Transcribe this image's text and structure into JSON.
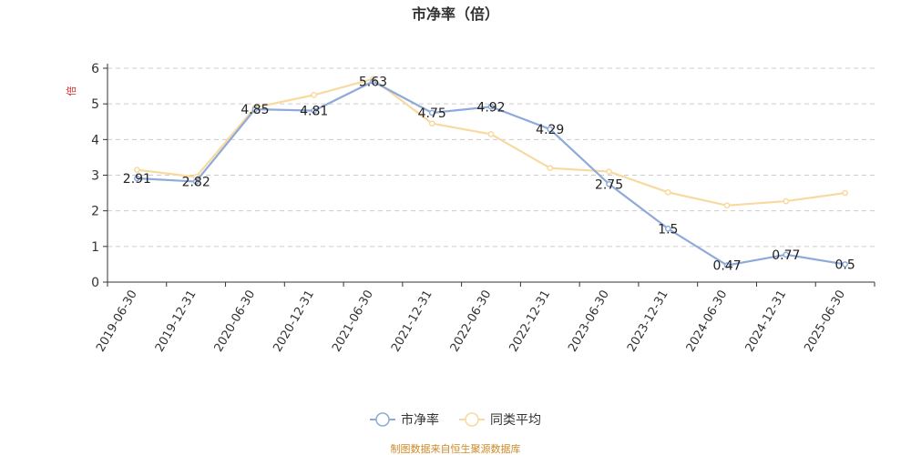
{
  "chart_data": {
    "type": "line",
    "title": "市净率（倍）",
    "ylabel": "倍",
    "xlabel": "",
    "ylim": [
      0,
      6
    ],
    "yticks": [
      "0",
      "1",
      "2",
      "3",
      "4",
      "5",
      "6"
    ],
    "grid": true,
    "legend_position": "bottom-center",
    "categories": [
      "2019-06-30",
      "2019-12-31",
      "2020-06-30",
      "2020-12-31",
      "2021-06-30",
      "2021-12-31",
      "2022-06-30",
      "2022-12-31",
      "2023-06-30",
      "2023-12-31",
      "2024-06-30",
      "2024-12-31",
      "2025-06-30"
    ],
    "series": [
      {
        "name": "市净率",
        "color": "#8eaad8",
        "values": [
          2.91,
          2.82,
          4.85,
          4.81,
          5.63,
          4.75,
          4.92,
          4.29,
          2.75,
          1.5,
          0.47,
          0.77,
          0.5
        ],
        "data_labels": [
          "2.91",
          "2.82",
          "4.85",
          "4.81",
          "5.63",
          "4.75",
          "4.92",
          "4.29",
          "2.75",
          "1.5",
          "0.47",
          "0.77",
          "0.5"
        ]
      },
      {
        "name": "同类平均",
        "color": "#f8d9a0",
        "values": [
          3.15,
          2.95,
          4.9,
          5.25,
          5.7,
          4.45,
          4.15,
          3.2,
          3.1,
          2.52,
          2.15,
          2.27,
          2.5
        ]
      }
    ],
    "source": "制图数据来自恒生聚源数据库"
  }
}
